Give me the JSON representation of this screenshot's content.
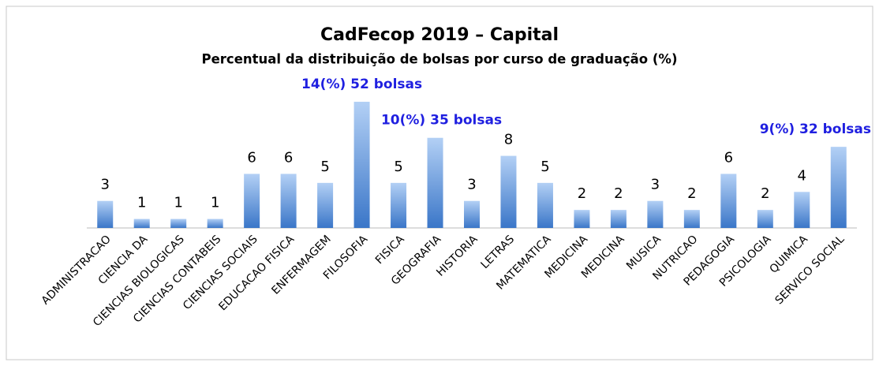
{
  "chart_data": {
    "type": "bar",
    "title": "CadFecop 2019 – Capital",
    "subtitle": "Percentual da distribuição de bolsas por curso de graduação (%)",
    "categories": [
      "ADMINISTRACAO",
      "CIENCIA DA",
      "CIENCIAS BIOLOGICAS",
      "CIENCIAS CONTABEIS",
      "CIENCIAS SOCIAIS",
      "EDUCACAO FISICA",
      "ENFERMAGEM",
      "FILOSOFIA",
      "FISICA",
      "GEOGRAFIA",
      "HISTORIA",
      "LETRAS",
      "MATEMATICA",
      "MEDICINA",
      "MEDICINA",
      "MUSICA",
      "NUTRICAO",
      "PEDAGOGIA",
      "PSICOLOGIA",
      "QUIMICA",
      "SERVICO SOCIAL"
    ],
    "values": [
      3,
      1,
      1,
      1,
      6,
      6,
      5,
      14,
      5,
      10,
      3,
      8,
      5,
      2,
      2,
      3,
      2,
      6,
      2,
      4,
      9
    ],
    "value_labels": [
      "3",
      "1",
      "1",
      "1",
      "6",
      "6",
      "5",
      "14(%) 52 bolsas",
      "5",
      "10(%) 35 bolsas",
      "3",
      "8",
      "5",
      "2",
      "2",
      "3",
      "2",
      "6",
      "2",
      "4",
      "9(%) 32 bolsas"
    ],
    "value_label_colors": [
      "#000000",
      "#000000",
      "#000000",
      "#000000",
      "#000000",
      "#000000",
      "#000000",
      "#1f1fe0",
      "#000000",
      "#1f1fe0",
      "#000000",
      "#000000",
      "#000000",
      "#000000",
      "#000000",
      "#000000",
      "#000000",
      "#000000",
      "#000000",
      "#000000",
      "#1f1fe0"
    ],
    "color": "#4a86d6"
  }
}
